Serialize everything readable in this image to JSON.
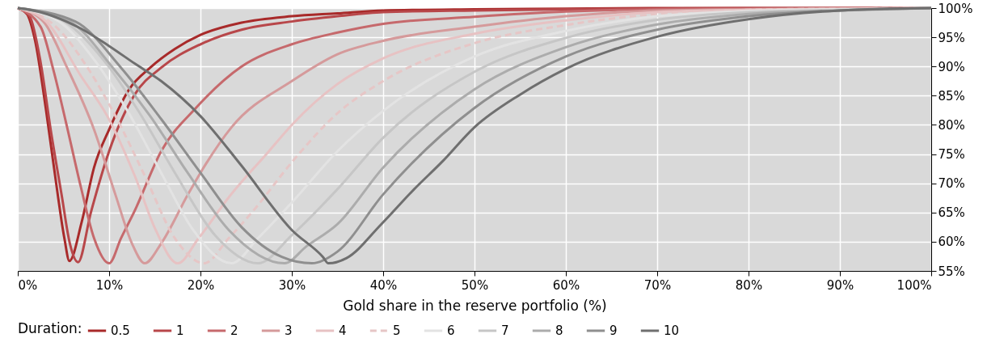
{
  "chart_data": {
    "type": "line",
    "xlabel": "Gold share in the reserve portfolio (%)",
    "legend_title": "Duration:",
    "legend": "bottom",
    "grid": true,
    "marker": "none",
    "line_style": "solid",
    "xlim": [
      0,
      100
    ],
    "ylim": [
      55,
      100
    ],
    "xticks": [
      {
        "value": 0,
        "label": "0%"
      },
      {
        "value": 10,
        "label": "10%"
      },
      {
        "value": 20,
        "label": "20%"
      },
      {
        "value": 30,
        "label": "30%"
      },
      {
        "value": 40,
        "label": "40%"
      },
      {
        "value": 50,
        "label": "50%"
      },
      {
        "value": 60,
        "label": "60%"
      },
      {
        "value": 70,
        "label": "70%"
      },
      {
        "value": 80,
        "label": "80%"
      },
      {
        "value": 90,
        "label": "90%"
      },
      {
        "value": 100,
        "label": "100%"
      }
    ],
    "yticks": [
      {
        "value": 55,
        "label": "55%"
      },
      {
        "value": 60,
        "label": "60%"
      },
      {
        "value": 65,
        "label": "65%"
      },
      {
        "value": 70,
        "label": "70%"
      },
      {
        "value": 75,
        "label": "75%"
      },
      {
        "value": 80,
        "label": "80%"
      },
      {
        "value": 85,
        "label": "85%"
      },
      {
        "value": 90,
        "label": "90%"
      },
      {
        "value": 95,
        "label": "95%"
      },
      {
        "value": 100,
        "label": "100%"
      }
    ],
    "series": [
      {
        "name": "0.5",
        "color": "#a82a2a",
        "x": [
          0,
          1,
          1.9,
          3.06,
          4.2,
          5.1,
          5.65,
          7,
          8.35,
          10,
          12.2,
          14.5,
          17.2,
          20,
          24.5,
          30,
          35,
          40,
          50,
          60,
          70,
          80,
          90,
          100
        ],
        "values": [
          100,
          99,
          94.4,
          82.9,
          70,
          60.6,
          56.7,
          63.4,
          72.7,
          79.2,
          86.1,
          89.8,
          93,
          95.4,
          97.5,
          98.6,
          99.1,
          99.6,
          99.8,
          99.9,
          100,
          100,
          100,
          100
        ]
      },
      {
        "name": "1",
        "color": "#b8474a",
        "x": [
          0,
          1.3,
          2.5,
          3.6,
          4.8,
          5.7,
          6.6,
          8,
          10,
          12.8,
          15.7,
          20,
          24.5,
          30,
          35,
          40,
          50,
          60,
          70,
          80,
          90,
          100
        ],
        "values": [
          100,
          98.6,
          90.7,
          79.2,
          68,
          59.7,
          56.5,
          65,
          75.5,
          85.2,
          89.8,
          93.8,
          96.3,
          97.7,
          98.6,
          99.3,
          99.6,
          99.8,
          99.9,
          100,
          100,
          100
        ]
      },
      {
        "name": "2",
        "color": "#c6696c",
        "x": [
          0,
          2.5,
          3.9,
          5.4,
          6.9,
          8.35,
          10,
          11.3,
          12.8,
          15.7,
          19.5,
          24.5,
          30,
          35,
          40,
          50,
          60,
          70,
          80,
          90,
          100
        ],
        "values": [
          100,
          96.8,
          89.4,
          79.6,
          69.4,
          60.6,
          56.3,
          60.6,
          65.3,
          75.5,
          82.9,
          90,
          93.8,
          95.8,
          97.3,
          98.5,
          99.4,
          99.8,
          99.9,
          100,
          100
        ]
      },
      {
        "name": "3",
        "color": "#d59a9b",
        "x": [
          0,
          2.8,
          5.4,
          8.35,
          10.7,
          12.5,
          13.9,
          15.7,
          18.6,
          20,
          23.4,
          30,
          35,
          40,
          50,
          60,
          70,
          80,
          90,
          100
        ],
        "values": [
          100,
          97.7,
          89.8,
          79.2,
          68,
          59.7,
          56.3,
          59.7,
          68,
          71.8,
          79.6,
          87.5,
          92.1,
          94.4,
          96.8,
          98.6,
          99.6,
          99.8,
          99.9,
          100
        ]
      },
      {
        "name": "4",
        "color": "#e7c2c3",
        "x": [
          0,
          3.1,
          6.9,
          9.8,
          12.8,
          15.1,
          17.5,
          19.8,
          23.1,
          27.5,
          30,
          35,
          40,
          50,
          60,
          70,
          80,
          90,
          100
        ],
        "values": [
          100,
          97.7,
          88.4,
          81.5,
          71.3,
          62,
          56.3,
          60.6,
          67.6,
          75.5,
          80,
          87,
          91.4,
          95.6,
          97.9,
          99.3,
          99.7,
          99.9,
          100
        ]
      },
      {
        "name": "5",
        "color": "#e6c6c6",
        "line_style": "dashed",
        "x": [
          0,
          3.9,
          7.8,
          10.7,
          13.9,
          17.2,
          20.4,
          23.1,
          26,
          30,
          35,
          40,
          50,
          60,
          70,
          80,
          90,
          100
        ],
        "values": [
          100,
          97.2,
          89.4,
          81.5,
          71.3,
          60.6,
          56.3,
          60.6,
          65.7,
          73.6,
          82,
          87.5,
          94,
          97.1,
          99,
          99.7,
          99.9,
          100
        ]
      },
      {
        "name": "6",
        "color": "#e3e3e3",
        "x": [
          0,
          4.5,
          8.35,
          12.2,
          15.7,
          19.2,
          23.4,
          26.3,
          30,
          35,
          40,
          50,
          60,
          70,
          80,
          90,
          100
        ],
        "values": [
          100,
          97.7,
          91.2,
          81.9,
          71.8,
          62,
          56.3,
          60.6,
          66.7,
          75.5,
          82.4,
          91.7,
          96.1,
          98.6,
          99.5,
          99.8,
          100
        ]
      },
      {
        "name": "7",
        "color": "#c6c6c6",
        "x": [
          0,
          5.1,
          9.8,
          13.4,
          17.2,
          21.6,
          26.3,
          30,
          35,
          40,
          50,
          60,
          70,
          80,
          90,
          100
        ],
        "values": [
          100,
          97.7,
          90.3,
          81.9,
          71.8,
          61.1,
          56.3,
          61.1,
          69,
          77.8,
          89.1,
          94.9,
          98,
          99.3,
          99.7,
          100
        ]
      },
      {
        "name": "8",
        "color": "#acacac",
        "x": [
          0,
          5.7,
          10.4,
          14.5,
          18.6,
          23.1,
          29.2,
          31.6,
          35,
          40,
          50,
          60,
          70,
          80,
          90,
          100
        ],
        "values": [
          100,
          97.7,
          89.8,
          81.5,
          71.8,
          62,
          56.3,
          59.2,
          63,
          72.7,
          86.1,
          93.3,
          97.2,
          99,
          99.6,
          100
        ]
      },
      {
        "name": "9",
        "color": "#8f8f8f",
        "x": [
          0,
          6.3,
          11.3,
          15.7,
          20,
          24.5,
          28.9,
          32.2,
          35,
          40,
          50,
          60,
          70,
          80,
          90,
          100
        ],
        "values": [
          100,
          97.7,
          89.8,
          81,
          71.8,
          62.5,
          57.4,
          56.3,
          58.3,
          68.1,
          82.9,
          91.7,
          96.3,
          98.6,
          99.6,
          100
        ]
      },
      {
        "name": "10",
        "color": "#6f6f6f",
        "x": [
          0,
          1,
          6.9,
          10,
          12.8,
          15.7,
          20,
          24.5,
          30,
          33.4,
          34,
          36,
          39.8,
          43.4,
          46.4,
          50,
          55,
          60,
          70,
          80,
          90,
          100
        ],
        "values": [
          100,
          99.8,
          96.5,
          93.5,
          90.5,
          87.5,
          81.5,
          73,
          62,
          57.4,
          56.3,
          57.2,
          63,
          69,
          73.6,
          79.6,
          85.2,
          89.6,
          95.1,
          98.1,
          99.6,
          100
        ]
      }
    ]
  }
}
